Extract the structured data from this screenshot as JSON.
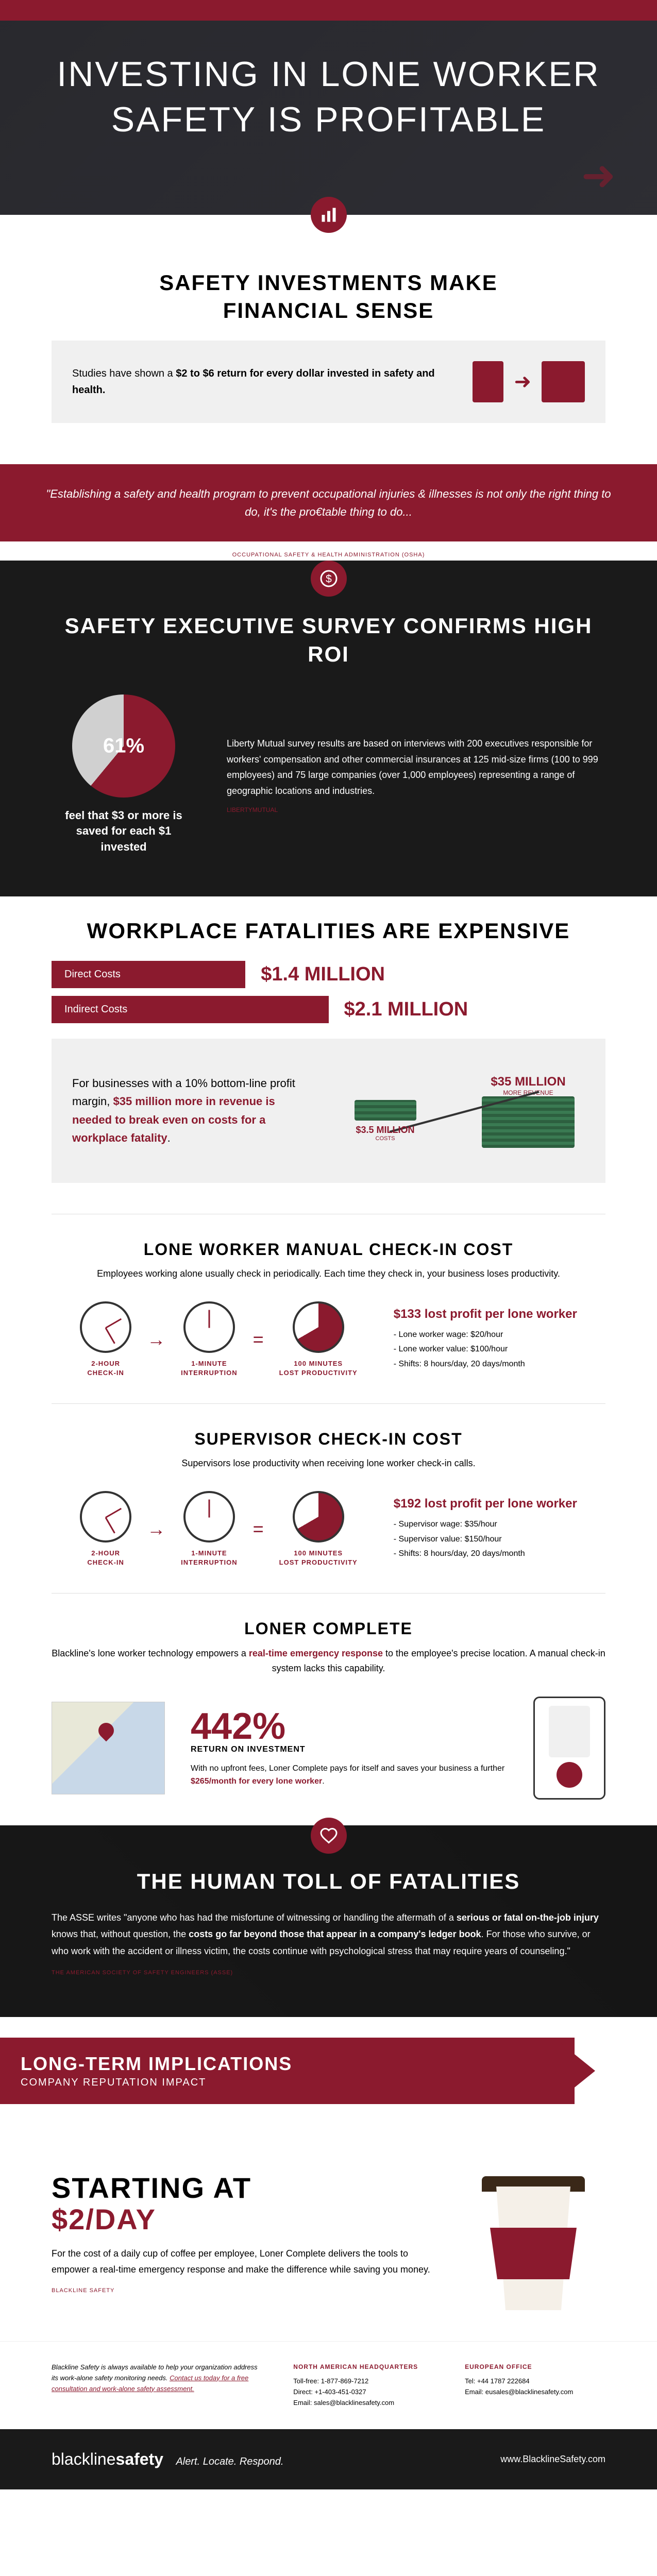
{
  "hero": {
    "title_line1": "INVESTING IN LONE WORKER",
    "title_line2": "SAFETY IS PROFITABLE"
  },
  "s1": {
    "heading_line1": "SAFETY INVESTMENTS MAKE",
    "heading_line2": "FINANCIAL SENSE",
    "study_pre": "Studies have shown a ",
    "study_bold": "$2 to $6 return for every dollar invested in safety and health.",
    "quote": "\"Establishing a safety and health program to prevent occupational injuries & illnesses is not only the right thing to do, it's the pro€table thing to do...",
    "attribution": "OCCUPATIONAL SAFETY & HEALTH ADMINISTRATION (OSHA)"
  },
  "s2": {
    "heading": "SAFETY EXECUTIVE SURVEY CONFIRMS HIGH ROI",
    "pie_percent": "61%",
    "pie_caption": "feel that $3 or more is saved for each $1 invested",
    "survey_text": "Liberty Mutual survey results are based on interviews with 200 executives responsible for workers' compensation and other commercial insurances at 125 mid-size firms (100 to 999 employees) and 75 large companies (over 1,000 employees) representing a range of geographic locations and industries.",
    "link": "LIBERTYMUTUAL"
  },
  "s3": {
    "heading": "WORKPLACE FATALITIES ARE EXPENSIVE",
    "direct_label": "Direct Costs",
    "direct_value": "$1.4 MILLION",
    "indirect_label": "Indirect Costs",
    "indirect_value": "$2.1 MILLION",
    "revenue_pre": "For businesses with a 10% bottom-line profit margin, ",
    "revenue_bold": "$35 million more in revenue is needed to break even on costs for a workplace fatality",
    "revenue_post": ".",
    "scale_small": "$3.5 MILLION",
    "scale_small_sub": "COSTS",
    "scale_large": "$35 MILLION",
    "scale_large_sub": "MORE REVENUE"
  },
  "s4": {
    "heading": "LONE WORKER MANUAL CHECK-IN COST",
    "sub": "Employees working alone usually check in periodically. Each time they check in, your business loses productivity.",
    "clock1": "2-HOUR\nCHECK-IN",
    "clock2": "1-MINUTE\nINTERRUPTION",
    "clock3": "100 MINUTES\nLOST PRODUCTIVITY",
    "cost_headline": "$133 lost profit per lone worker",
    "detail1": "- Lone worker wage: $20/hour",
    "detail2": "- Lone worker value: $100/hour",
    "detail3": "- Shifts: 8 hours/day, 20 days/month"
  },
  "s5": {
    "heading": "SUPERVISOR CHECK-IN COST",
    "sub": "Supervisors lose productivity when receiving lone worker check-in calls.",
    "cost_headline": "$192 lost profit per lone worker",
    "detail1": "- Supervisor wage: $35/hour",
    "detail2": "- Supervisor value: $150/hour",
    "detail3": "- Shifts: 8 hours/day, 20 days/month"
  },
  "s6": {
    "heading": "LONER COMPLETE",
    "sub_pre": "Blackline's lone worker technology empowers a ",
    "sub_bold": "real-time emergency response",
    "sub_post": " to the employee's precise location. A manual check-in system lacks this capability.",
    "roi_big": "442%",
    "roi_label": "RETURN ON INVESTMENT",
    "roi_desc_pre": "With no upfront fees, Loner Complete pays for itself and saves your business a further ",
    "roi_desc_bold": "$265/month for every lone worker",
    "roi_desc_post": "."
  },
  "s7": {
    "heading": "THE HUMAN TOLL OF FATALITIES",
    "text_pre": "The ASSE writes \"anyone who has had the misfortune of witnessing or handling the aftermath of a ",
    "text_b1": "serious or fatal on-the-job injury",
    "text_mid": " knows that, without question, the ",
    "text_b2": "costs go far beyond those that appear in a company's ledger book",
    "text_post": ". For those who survive, or who work with the accident or illness victim, the costs continue with psychological stress that may require years of counseling.\"",
    "attribution": "THE AMERICAN SOCIETY OF SAFETY ENGINEERS (ASSE)"
  },
  "s8": {
    "title": "LONG-TERM IMPLICATIONS",
    "sub": "COMPANY REPUTATION IMPACT"
  },
  "s9": {
    "title_line1": "STARTING AT",
    "title_line2": "$2/DAY",
    "desc": "For the cost of a daily cup of coffee per employee, Loner Complete delivers the tools to empower a real-time emergency response and make the difference while saving you money.",
    "attribution": "BLACKLINE SAFETY"
  },
  "footer": {
    "intro_pre": "Blackline Safety is always available to help your organization address its work-alone safety monitoring needs. ",
    "intro_link": "Contact us today for a free consultation and work-alone safety assessment.",
    "na_heading": "NORTH AMERICAN HEADQUARTERS",
    "na_l1": "Toll-free: 1-877-869-7212",
    "na_l2": "Direct: +1-403-451-0327",
    "na_l3": "Email: sales@blacklinesafety.com",
    "eu_heading": "EUROPEAN OFFICE",
    "eu_l1": "Tel: +44 1787 222684",
    "eu_l2": "Email: eusales@blacklinesafety.com",
    "brand_pre": "blackline",
    "brand_post": "safety",
    "tagline": "Alert. Locate. Respond.",
    "website": "www.BlacklineSafety.com"
  },
  "colors": {
    "primary": "#8b1a2e",
    "dark": "#1a1a1a"
  }
}
